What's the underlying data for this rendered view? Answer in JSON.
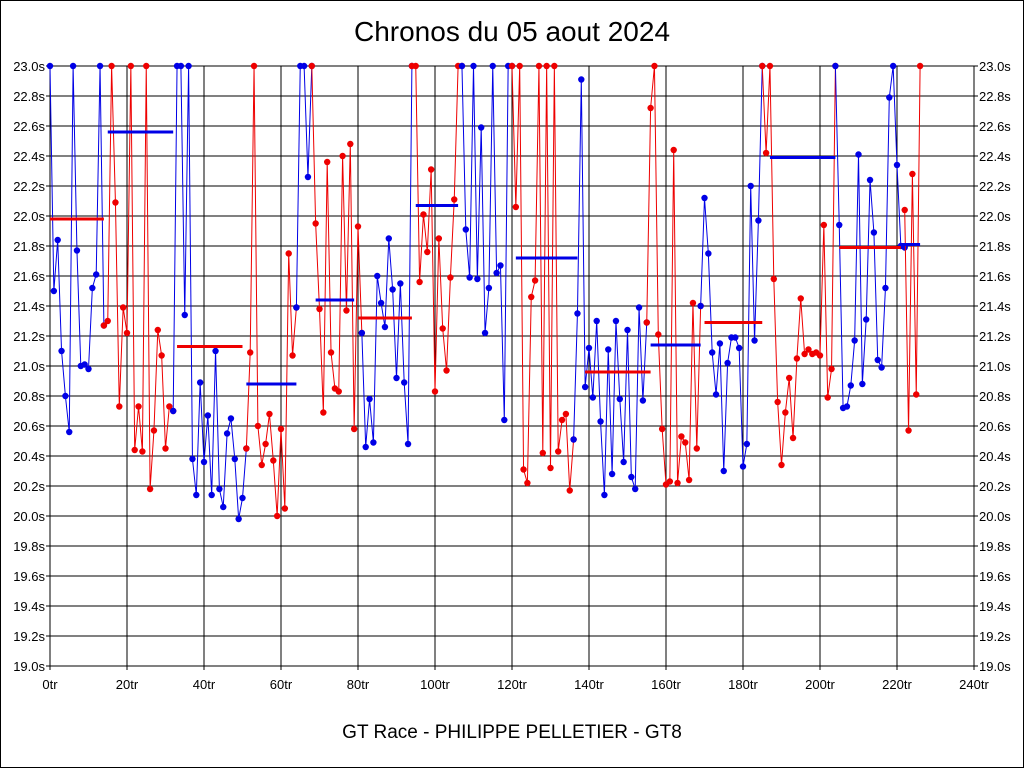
{
  "chart_data": {
    "type": "line",
    "title": "Chronos du 05 aout 2024",
    "caption": "GT Race - PHILIPPE PELLETIER - GT8",
    "xlabel": "",
    "ylabel": "",
    "xlim": [
      0,
      240
    ],
    "ylim": [
      19.0,
      23.0
    ],
    "grid": true,
    "x_ticks": [
      0,
      20,
      40,
      60,
      80,
      100,
      120,
      140,
      160,
      180,
      200,
      220,
      240
    ],
    "x_tick_labels": [
      "0tr",
      "20tr",
      "40tr",
      "60tr",
      "80tr",
      "100tr",
      "120tr",
      "140tr",
      "160tr",
      "180tr",
      "200tr",
      "220tr",
      "240tr"
    ],
    "y_ticks": [
      19.0,
      19.2,
      19.4,
      19.6,
      19.8,
      20.0,
      20.2,
      20.4,
      20.6,
      20.8,
      21.0,
      21.2,
      21.4,
      21.6,
      21.8,
      22.0,
      22.2,
      22.4,
      22.6,
      22.8,
      23.0
    ],
    "y_tick_labels": [
      "19.0s",
      "19.2s",
      "19.4s",
      "19.6s",
      "19.8s",
      "20.0s",
      "20.2s",
      "20.4s",
      "20.6s",
      "20.8s",
      "21.0s",
      "21.2s",
      "21.4s",
      "21.6s",
      "21.8s",
      "22.0s",
      "22.2s",
      "22.4s",
      "22.6s",
      "22.8s",
      "23.0s"
    ],
    "colors": {
      "blue": "#0000e6",
      "red": "#ee0000",
      "grid": "#000000"
    },
    "series": [
      {
        "name": "segment 1",
        "color": "blue",
        "average": 21.98,
        "x": [
          0,
          1,
          2,
          3,
          4,
          5,
          6,
          7,
          8,
          9,
          10,
          11,
          12,
          13,
          14
        ],
        "y": [
          23.0,
          21.5,
          21.84,
          21.1,
          20.8,
          20.56,
          23.0,
          21.77,
          21.0,
          21.01,
          20.98,
          21.52,
          21.61,
          23.0,
          21.27
        ]
      },
      {
        "name": "segment 2",
        "color": "red",
        "average": 21.13,
        "x": [
          14,
          15,
          16,
          17,
          18,
          19,
          20,
          21,
          22,
          23,
          24,
          25,
          26,
          27,
          28,
          29,
          30,
          31,
          32
        ],
        "y": [
          21.27,
          21.3,
          23.0,
          22.09,
          20.73,
          21.39,
          21.22,
          23.0,
          20.44,
          20.73,
          20.43,
          23.0,
          20.18,
          20.57,
          21.24,
          21.07,
          20.45,
          20.73,
          20.7
        ]
      },
      {
        "name": "segment 3",
        "color": "blue",
        "average": 22.56,
        "x": [
          32,
          33,
          34,
          35,
          36,
          37,
          38,
          39,
          40,
          41,
          42,
          43,
          44,
          45,
          46,
          47,
          48,
          49,
          50,
          51
        ],
        "y": [
          20.7,
          23.0,
          23.0,
          21.34,
          23.0,
          20.38,
          20.14,
          20.89,
          20.36,
          20.67,
          20.14,
          21.1,
          20.18,
          20.06,
          20.55,
          20.65,
          20.38,
          19.98,
          20.12,
          20.45
        ]
      },
      {
        "name": "segment 4",
        "color": "red",
        "average": 20.88,
        "x": [
          51,
          52,
          53,
          54,
          55,
          56,
          57,
          58,
          59,
          60,
          61,
          62,
          63,
          64
        ],
        "y": [
          20.45,
          21.09,
          23.0,
          20.6,
          20.34,
          20.48,
          20.68,
          20.37,
          20.0,
          20.58,
          20.05,
          21.75,
          21.07,
          21.39
        ]
      },
      {
        "name": "segment 5",
        "color": "blue",
        "average": 21.44,
        "x": [
          64,
          65,
          66,
          67,
          68
        ],
        "y": [
          21.39,
          23.0,
          23.0,
          22.26,
          23.0
        ]
      },
      {
        "name": "segment 6",
        "color": "red",
        "average": 21.32,
        "x": [
          68,
          69,
          70,
          71,
          72,
          73,
          74,
          75,
          76,
          77,
          78,
          79,
          80,
          81
        ],
        "y": [
          23.0,
          21.95,
          21.38,
          20.69,
          22.36,
          21.09,
          20.85,
          20.83,
          22.4,
          21.37,
          22.48,
          20.58,
          21.93,
          21.22
        ]
      },
      {
        "name": "segment 7",
        "color": "blue",
        "average": 22.07,
        "x": [
          81,
          82,
          83,
          84,
          85,
          86,
          87,
          88,
          89,
          90,
          91,
          92,
          93,
          94
        ],
        "y": [
          21.22,
          20.46,
          20.78,
          20.49,
          21.6,
          21.42,
          21.26,
          21.85,
          21.51,
          20.92,
          21.55,
          20.89,
          20.48,
          23.0
        ]
      },
      {
        "name": "segment 8",
        "color": "red",
        "average": 21.72,
        "x": [
          94,
          95,
          96,
          97,
          98,
          99,
          100,
          101,
          102,
          103,
          104,
          105,
          106,
          107
        ],
        "y": [
          23.0,
          23.0,
          21.56,
          22.01,
          21.76,
          22.31,
          20.83,
          21.85,
          21.25,
          20.97,
          21.59,
          22.11,
          23.0,
          23.0
        ]
      },
      {
        "name": "segment 9",
        "color": "blue",
        "average": 20.96,
        "x": [
          107,
          108,
          109,
          110,
          111,
          112,
          113,
          114,
          115,
          116,
          117,
          118,
          119,
          120
        ],
        "y": [
          23.0,
          21.91,
          21.59,
          23.0,
          21.58,
          22.59,
          21.22,
          21.52,
          23.0,
          21.62,
          21.67,
          20.64,
          23.0,
          23.0
        ]
      },
      {
        "name": "segment 10",
        "color": "red",
        "average": 21.14,
        "x": [
          120,
          121,
          122,
          123,
          124,
          125,
          126,
          127,
          128,
          129,
          130,
          131,
          132,
          133,
          134,
          135,
          136
        ],
        "y": [
          23.0,
          22.06,
          23.0,
          20.31,
          20.22,
          21.46,
          21.57,
          23.0,
          20.42,
          23.0,
          20.32,
          23.0,
          20.43,
          20.64,
          20.68,
          20.17,
          20.51
        ]
      },
      {
        "name": "segment 11",
        "color": "blue",
        "average": 22.39,
        "x": [
          136,
          137,
          138,
          139,
          140,
          141,
          142,
          143,
          144,
          145,
          146,
          147,
          148,
          149,
          150,
          151,
          152,
          153,
          154,
          155
        ],
        "y": [
          20.51,
          21.35,
          22.91,
          20.86,
          21.12,
          20.79,
          21.3,
          20.63,
          20.14,
          21.11,
          20.28,
          21.3,
          20.78,
          20.36,
          21.24,
          20.26,
          20.18,
          21.39,
          20.77,
          21.29
        ]
      },
      {
        "name": "segment 12",
        "color": "red",
        "average": 21.29,
        "x": [
          155,
          156,
          157,
          158,
          159,
          160,
          161,
          162,
          163,
          164,
          165,
          166,
          167,
          168,
          169
        ],
        "y": [
          21.29,
          22.72,
          23.0,
          21.21,
          20.58,
          20.21,
          20.23,
          22.44,
          20.22,
          20.53,
          20.49,
          20.24,
          21.42,
          20.45,
          21.4
        ]
      },
      {
        "name": "segment 13",
        "color": "blue",
        "average": 21.8,
        "x": [
          169,
          170,
          171,
          172,
          173,
          174,
          175,
          176,
          177,
          178,
          179,
          180,
          181,
          182,
          183,
          184,
          185
        ],
        "y": [
          21.4,
          22.12,
          21.75,
          21.09,
          20.81,
          21.15,
          20.3,
          21.02,
          21.19,
          21.19,
          21.12,
          20.33,
          20.48,
          22.2,
          21.17,
          21.97,
          23.0
        ]
      },
      {
        "name": "segment 14",
        "color": "red",
        "average": 21.79,
        "x": [
          185,
          186,
          187,
          188,
          189,
          190,
          191,
          192,
          193,
          194,
          195,
          196,
          197,
          198,
          199,
          200,
          201,
          202,
          203,
          204
        ],
        "y": [
          23.0,
          22.42,
          23.0,
          21.58,
          20.76,
          20.34,
          20.69,
          20.92,
          20.52,
          21.05,
          21.45,
          21.08,
          21.11,
          21.08,
          21.09,
          21.07,
          21.94,
          20.79,
          20.98,
          23.0
        ]
      },
      {
        "name": "segment 15",
        "color": "blue",
        "average": 21.81,
        "x": [
          204,
          205,
          206,
          207,
          208,
          209,
          210,
          211,
          212,
          213,
          214,
          215,
          216,
          217,
          218,
          219,
          220,
          221,
          222
        ],
        "y": [
          23.0,
          21.94,
          20.72,
          20.73,
          20.87,
          21.17,
          22.41,
          20.88,
          21.31,
          22.24,
          21.89,
          21.04,
          20.99,
          21.52,
          22.79,
          23.0,
          22.34,
          21.8,
          21.79
        ]
      },
      {
        "name": "segment 16",
        "color": "red",
        "average": 20.96,
        "x": [
          222,
          223,
          224,
          225,
          226
        ],
        "y": [
          22.04,
          20.57,
          22.28,
          20.81,
          23.0
        ]
      }
    ],
    "averages": [
      {
        "color": "red",
        "x": [
          0,
          14
        ],
        "value": 21.98
      },
      {
        "color": "blue",
        "x": [
          15,
          32
        ],
        "value": 22.56
      },
      {
        "color": "red",
        "x": [
          33,
          50
        ],
        "value": 21.13
      },
      {
        "color": "blue",
        "x": [
          51,
          64
        ],
        "value": 20.88
      },
      {
        "color": "blue",
        "x": [
          69,
          79
        ],
        "value": 21.44
      },
      {
        "color": "red",
        "x": [
          80,
          94
        ],
        "value": 21.32
      },
      {
        "color": "blue",
        "x": [
          95,
          106
        ],
        "value": 22.07
      },
      {
        "color": "blue",
        "x": [
          121,
          137
        ],
        "value": 21.72
      },
      {
        "color": "red",
        "x": [
          139,
          156
        ],
        "value": 20.96
      },
      {
        "color": "blue",
        "x": [
          156,
          169
        ],
        "value": 21.14
      },
      {
        "color": "red",
        "x": [
          170,
          185
        ],
        "value": 21.29
      },
      {
        "color": "blue",
        "x": [
          187,
          204
        ],
        "value": 22.39
      },
      {
        "color": "red",
        "x": [
          205,
          221
        ],
        "value": 21.79
      },
      {
        "color": "blue",
        "x": [
          221,
          226
        ],
        "value": 21.81
      }
    ]
  }
}
